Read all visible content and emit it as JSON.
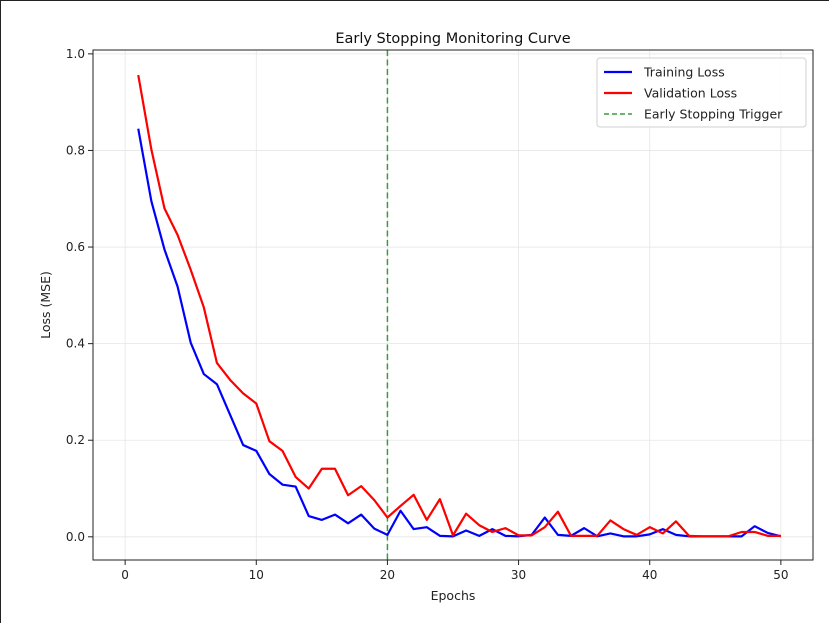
{
  "chart_data": {
    "type": "line",
    "title": "Early Stopping Monitoring Curve",
    "xlabel": "Epochs",
    "ylabel": "Loss (MSE)",
    "xlim": [
      -2.45,
      52.45
    ],
    "ylim": [
      -0.048,
      1.008
    ],
    "xticks": [
      0,
      10,
      20,
      30,
      40,
      50
    ],
    "yticks": [
      0.0,
      0.2,
      0.4,
      0.6,
      0.8,
      1.0
    ],
    "ytick_labels": [
      "0.0",
      "0.2",
      "0.4",
      "0.6",
      "0.8",
      "1.0"
    ],
    "grid": true,
    "legend_position": "top-right",
    "x": [
      1,
      2,
      3,
      4,
      5,
      6,
      7,
      8,
      9,
      10,
      11,
      12,
      13,
      14,
      15,
      16,
      17,
      18,
      19,
      20,
      21,
      22,
      23,
      24,
      25,
      26,
      27,
      28,
      29,
      30,
      31,
      32,
      33,
      34,
      35,
      36,
      37,
      38,
      39,
      40,
      41,
      42,
      43,
      44,
      45,
      46,
      47,
      48,
      49,
      50
    ],
    "series": [
      {
        "name": "Training Loss",
        "color": "#0000ff",
        "style": "solid",
        "values": [
          0.845,
          0.695,
          0.595,
          0.518,
          0.402,
          0.337,
          0.316,
          0.253,
          0.19,
          0.178,
          0.13,
          0.108,
          0.104,
          0.043,
          0.035,
          0.046,
          0.028,
          0.046,
          0.017,
          0.004,
          0.054,
          0.016,
          0.02,
          0.002,
          0.001,
          0.013,
          0.002,
          0.016,
          0.002,
          0.001,
          0.004,
          0.04,
          0.004,
          0.002,
          0.018,
          0.001,
          0.007,
          0.001,
          0.001,
          0.005,
          0.016,
          0.004,
          0.001,
          0.001,
          0.001,
          0.001,
          0.001,
          0.022,
          0.008,
          0.001
        ]
      },
      {
        "name": "Validation Loss",
        "color": "#ff0000",
        "style": "solid",
        "values": [
          0.956,
          0.802,
          0.68,
          0.625,
          0.553,
          0.475,
          0.36,
          0.325,
          0.297,
          0.276,
          0.198,
          0.178,
          0.124,
          0.1,
          0.141,
          0.141,
          0.086,
          0.105,
          0.076,
          0.04,
          0.064,
          0.087,
          0.035,
          0.078,
          0.003,
          0.048,
          0.024,
          0.01,
          0.018,
          0.003,
          0.003,
          0.02,
          0.052,
          0.002,
          0.002,
          0.002,
          0.034,
          0.016,
          0.004,
          0.02,
          0.007,
          0.032,
          0.002,
          0.001,
          0.001,
          0.001,
          0.01,
          0.01,
          0.002,
          0.002
        ]
      }
    ],
    "vlines": [
      {
        "name": "Early Stopping Trigger",
        "x": 20,
        "color": "#3c9a3c",
        "style": "dashed"
      }
    ]
  }
}
